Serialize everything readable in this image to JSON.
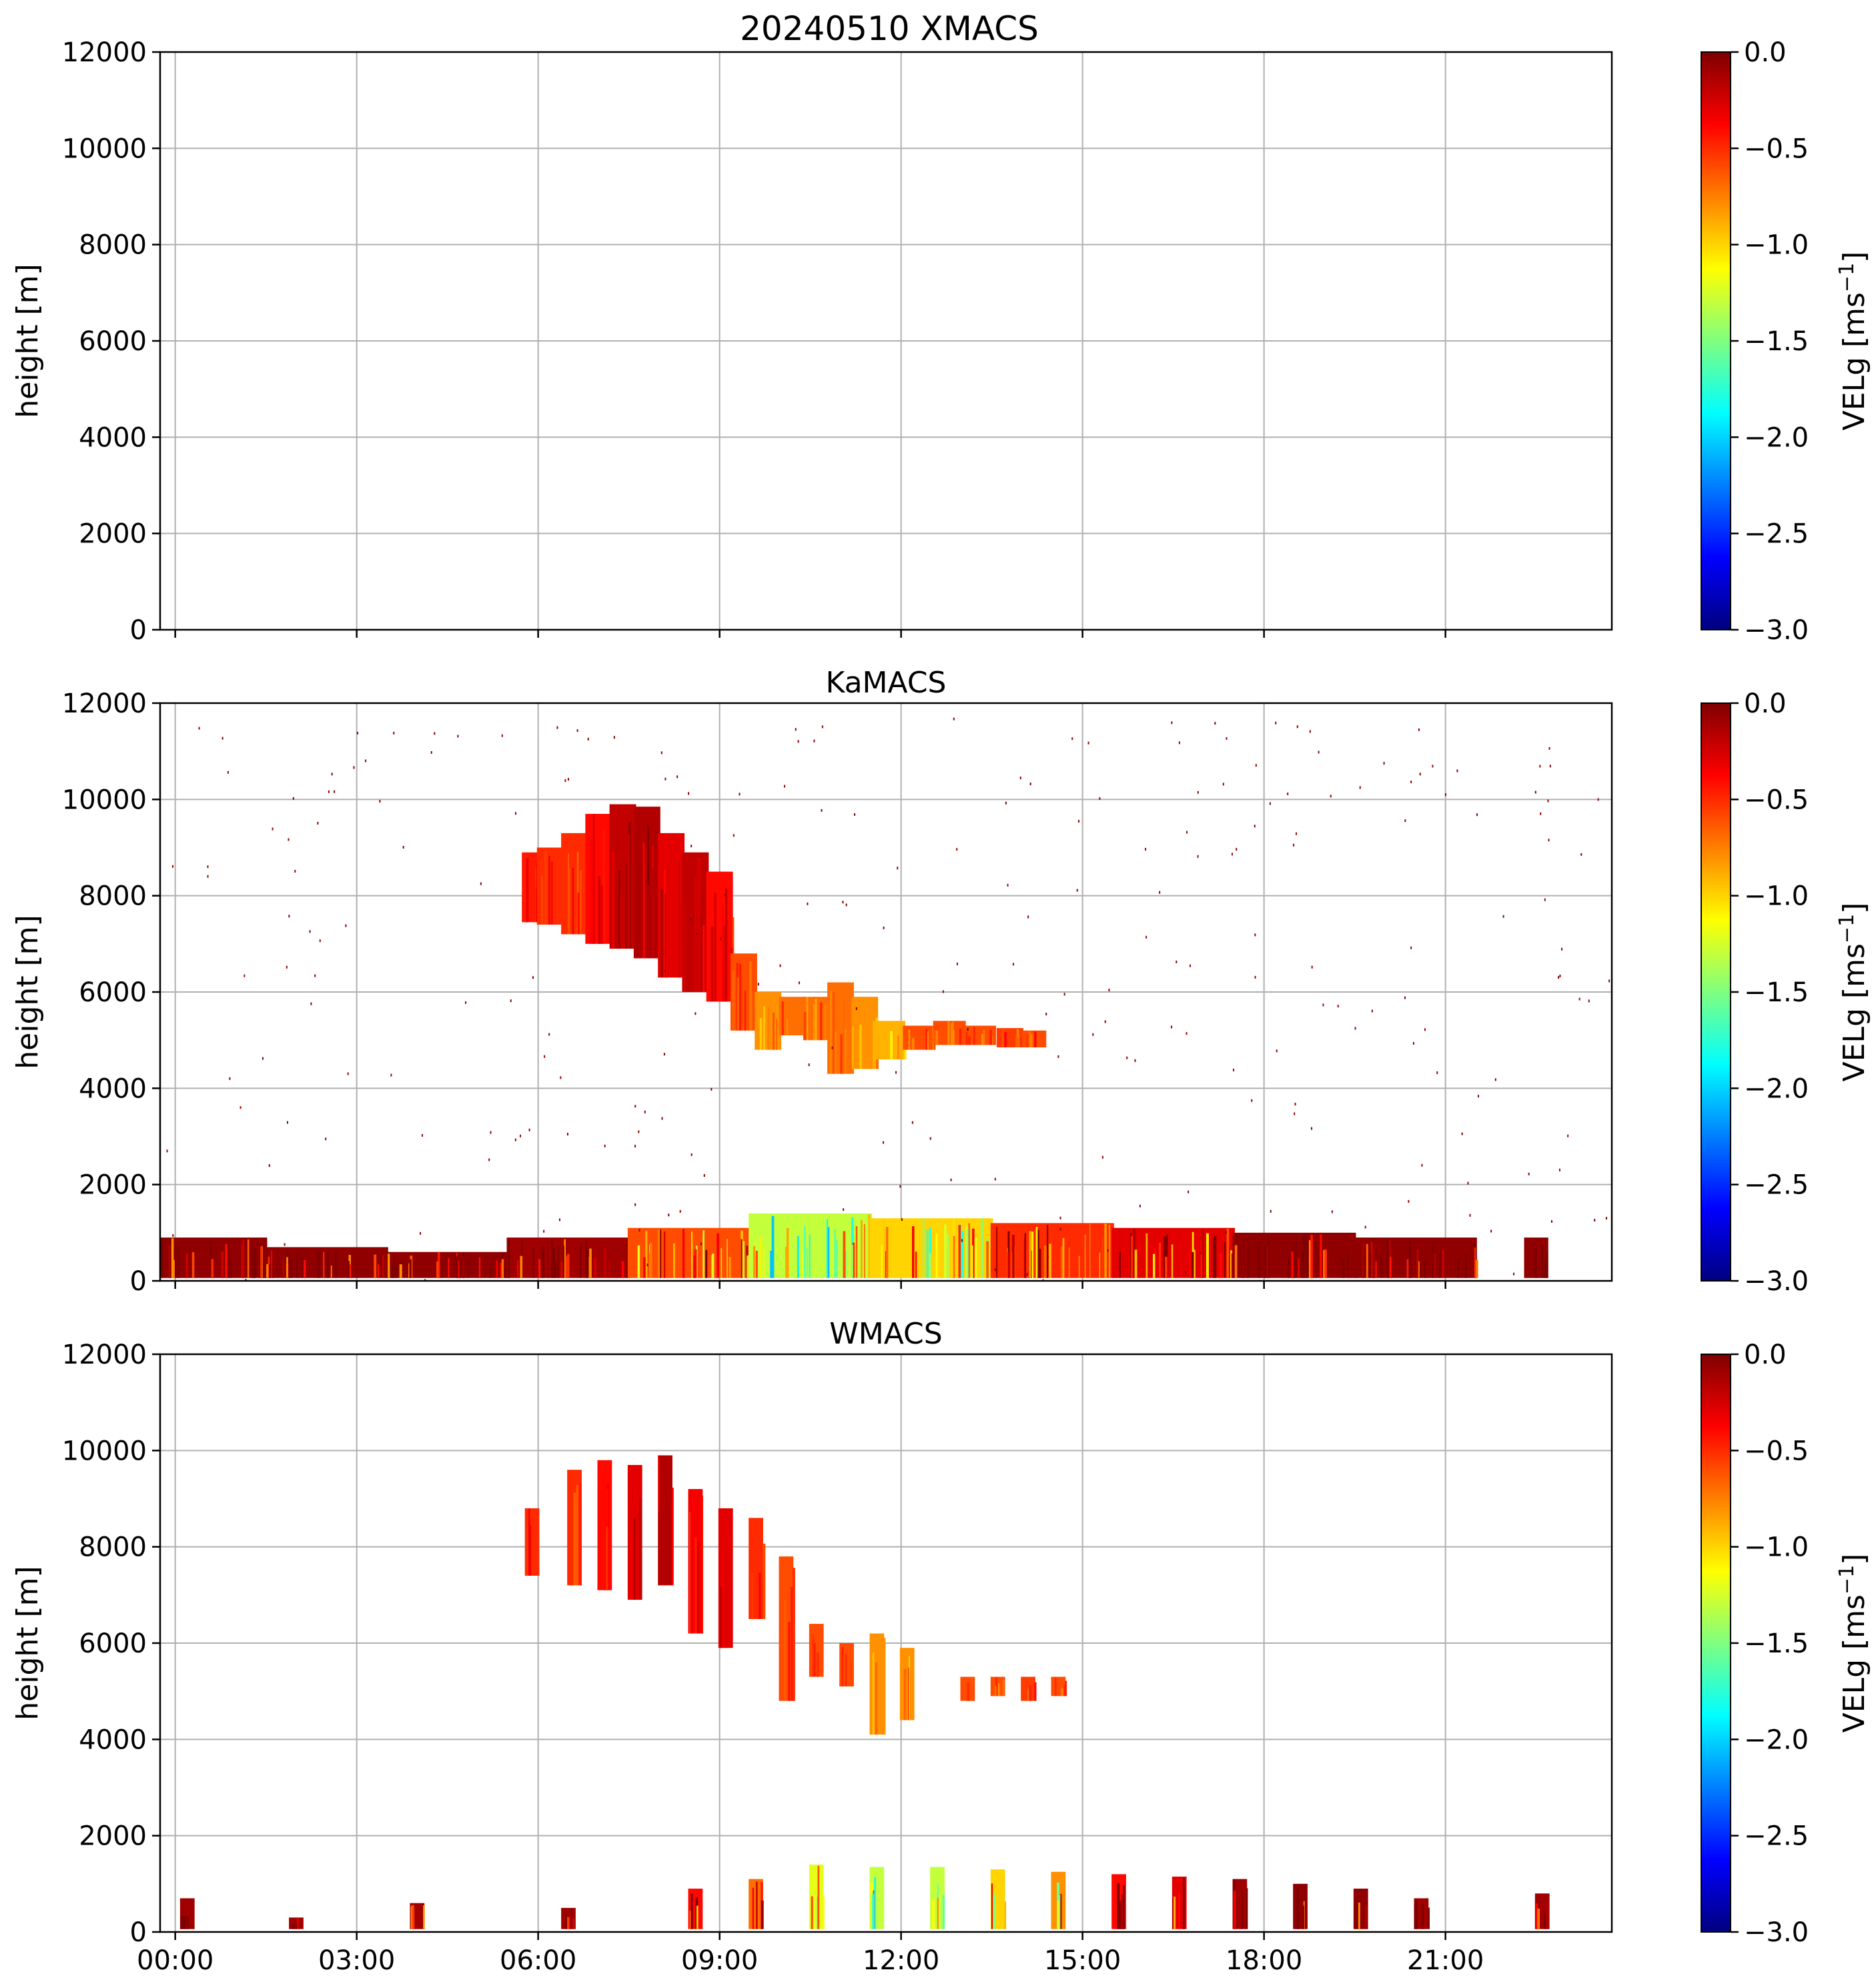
{
  "figure": {
    "suptitle": "20240510 XMACS"
  },
  "chart_data": [
    {
      "type": "heatmap",
      "title": "",
      "xlabel": "",
      "ylabel": "height [m]",
      "xlim": [
        -0.25,
        23.75
      ],
      "ylim": [
        0,
        12000
      ],
      "x_ticks": [
        0,
        3,
        6,
        9,
        12,
        15,
        18,
        21
      ],
      "x_tick_labels": [
        "00:00",
        "03:00",
        "06:00",
        "09:00",
        "12:00",
        "15:00",
        "18:00",
        "21:00"
      ],
      "show_x_tick_labels": false,
      "y_ticks": [
        0,
        2000,
        4000,
        6000,
        8000,
        10000,
        12000
      ],
      "y_tick_labels": [
        "0",
        "2000",
        "4000",
        "6000",
        "8000",
        "10000",
        "12000"
      ],
      "grid": true,
      "colorbar": {
        "label": "VELg [ms",
        "label_sup": "−1",
        "label_end": "]",
        "range": [
          -3.0,
          0.0
        ],
        "colormap": "jet",
        "colors": [
          "#00007f",
          "#0000ff",
          "#007fff",
          "#00ffff",
          "#7fff7f",
          "#ffff00",
          "#ff7f00",
          "#ff0000",
          "#7f0000"
        ],
        "ticks": [
          0.0,
          -0.5,
          -1.0,
          -1.5,
          -2.0,
          -2.5,
          -3.0
        ],
        "tick_labels": [
          "0.0",
          "−0.5",
          "−1.0",
          "−1.5",
          "−2.0",
          "−2.5",
          "−3.0"
        ]
      },
      "features": []
    },
    {
      "type": "heatmap",
      "title": "KaMACS",
      "xlabel": "",
      "ylabel": "height [m]",
      "xlim": [
        -0.25,
        23.75
      ],
      "ylim": [
        0,
        12000
      ],
      "x_ticks": [
        0,
        3,
        6,
        9,
        12,
        15,
        18,
        21
      ],
      "x_tick_labels": [
        "00:00",
        "03:00",
        "06:00",
        "09:00",
        "12:00",
        "15:00",
        "18:00",
        "21:00"
      ],
      "show_x_tick_labels": false,
      "y_ticks": [
        0,
        2000,
        4000,
        6000,
        8000,
        10000,
        12000
      ],
      "y_tick_labels": [
        "0",
        "2000",
        "4000",
        "6000",
        "8000",
        "10000",
        "12000"
      ],
      "grid": true,
      "colorbar": {
        "label": "VELg [ms",
        "label_sup": "−1",
        "label_end": "]",
        "range": [
          -3.0,
          0.0
        ],
        "colormap": "jet",
        "colors": [
          "#00007f",
          "#0000ff",
          "#007fff",
          "#00ffff",
          "#7fff7f",
          "#ffff00",
          "#ff7f00",
          "#ff0000",
          "#7f0000"
        ],
        "ticks": [
          0.0,
          -0.5,
          -1.0,
          -1.5,
          -2.0,
          -2.5,
          -3.0
        ],
        "tick_labels": [
          "0.0",
          "−0.5",
          "−1.0",
          "−1.5",
          "−2.0",
          "−2.5",
          "−3.0"
        ]
      },
      "features": [
        {
          "kind": "cloud",
          "description_values": "upper-level ice cloud, mostly −0.3 to −0.7 m/s",
          "columns": [
            {
              "t": 5.9,
              "bottom": 7450,
              "top": 8900,
              "velg": -0.45
            },
            {
              "t": 6.2,
              "bottom": 7400,
              "top": 9000,
              "velg": -0.5
            },
            {
              "t": 6.6,
              "bottom": 7200,
              "top": 9300,
              "velg": -0.5
            },
            {
              "t": 7.0,
              "bottom": 7000,
              "top": 9700,
              "velg": -0.4
            },
            {
              "t": 7.4,
              "bottom": 6900,
              "top": 9900,
              "velg": -0.2
            },
            {
              "t": 7.8,
              "bottom": 6700,
              "top": 9850,
              "velg": -0.15
            },
            {
              "t": 8.2,
              "bottom": 6300,
              "top": 9300,
              "velg": -0.3
            },
            {
              "t": 8.6,
              "bottom": 6000,
              "top": 8900,
              "velg": -0.2
            },
            {
              "t": 9.0,
              "bottom": 5800,
              "top": 8500,
              "velg": -0.4
            },
            {
              "t": 9.4,
              "bottom": 5200,
              "top": 6800,
              "velg": -0.6
            },
            {
              "t": 9.8,
              "bottom": 4800,
              "top": 6000,
              "velg": -0.8
            },
            {
              "t": 10.2,
              "bottom": 5100,
              "top": 5900,
              "velg": -0.7
            },
            {
              "t": 10.6,
              "bottom": 5000,
              "top": 5900,
              "velg": -0.7
            },
            {
              "t": 11.0,
              "bottom": 4300,
              "top": 6200,
              "velg": -0.7
            },
            {
              "t": 11.4,
              "bottom": 4400,
              "top": 5900,
              "velg": -0.8
            },
            {
              "t": 11.8,
              "bottom": 4600,
              "top": 5400,
              "velg": -0.9
            },
            {
              "t": 12.3,
              "bottom": 4800,
              "top": 5300,
              "velg": -0.6
            },
            {
              "t": 12.8,
              "bottom": 4900,
              "top": 5400,
              "velg": -0.6
            },
            {
              "t": 13.3,
              "bottom": 4900,
              "top": 5300,
              "velg": -0.6
            },
            {
              "t": 13.8,
              "bottom": 4850,
              "top": 5250,
              "velg": -0.55
            },
            {
              "t": 14.2,
              "bottom": 4850,
              "top": 5200,
              "velg": -0.6
            }
          ]
        },
        {
          "kind": "boundary-layer",
          "description_values": "low-level echoes below ~1400 m throughout the day",
          "columns": [
            {
              "t": 0.5,
              "top": 900,
              "velg": -0.05
            },
            {
              "t": 2.5,
              "top": 700,
              "velg": -0.05
            },
            {
              "t": 4.5,
              "top": 600,
              "velg": -0.05
            },
            {
              "t": 6.5,
              "top": 900,
              "velg": -0.1
            },
            {
              "t": 8.5,
              "top": 1100,
              "velg": -0.6
            },
            {
              "t": 10.5,
              "top": 1400,
              "velg": -1.3
            },
            {
              "t": 12.5,
              "top": 1300,
              "velg": -1.0
            },
            {
              "t": 14.5,
              "top": 1200,
              "velg": -0.5
            },
            {
              "t": 16.5,
              "top": 1100,
              "velg": -0.3
            },
            {
              "t": 18.5,
              "top": 1000,
              "velg": -0.05
            },
            {
              "t": 20.5,
              "top": 900,
              "velg": -0.05
            },
            {
              "t": 22.5,
              "top": 900,
              "velg": -0.05
            }
          ]
        }
      ]
    },
    {
      "type": "heatmap",
      "title": "WMACS",
      "xlabel": "",
      "ylabel": "height [m]",
      "xlim": [
        -0.25,
        23.75
      ],
      "ylim": [
        0,
        12000
      ],
      "x_ticks": [
        0,
        3,
        6,
        9,
        12,
        15,
        18,
        21
      ],
      "x_tick_labels": [
        "00:00",
        "03:00",
        "06:00",
        "09:00",
        "12:00",
        "15:00",
        "18:00",
        "21:00"
      ],
      "show_x_tick_labels": true,
      "y_ticks": [
        0,
        2000,
        4000,
        6000,
        8000,
        10000,
        12000
      ],
      "y_tick_labels": [
        "0",
        "2000",
        "4000",
        "6000",
        "8000",
        "10000",
        "12000"
      ],
      "grid": true,
      "colorbar": {
        "label": "VELg [ms",
        "label_sup": "−1",
        "label_end": "]",
        "range": [
          -3.0,
          0.0
        ],
        "colormap": "jet",
        "colors": [
          "#00007f",
          "#0000ff",
          "#007fff",
          "#00ffff",
          "#7fff7f",
          "#ffff00",
          "#ff7f00",
          "#ff0000",
          "#7f0000"
        ],
        "ticks": [
          0.0,
          -0.5,
          -1.0,
          -1.5,
          -2.0,
          -2.5,
          -3.0
        ],
        "tick_labels": [
          "0.0",
          "−0.5",
          "−1.0",
          "−1.5",
          "−2.0",
          "−2.5",
          "−3.0"
        ]
      },
      "features": [
        {
          "kind": "cloud-strips",
          "description_values": "intermittent strips of upper cloud",
          "columns": [
            {
              "t": 5.9,
              "bottom": 7400,
              "top": 8800,
              "velg": -0.5
            },
            {
              "t": 6.6,
              "bottom": 7200,
              "top": 9600,
              "velg": -0.5
            },
            {
              "t": 7.1,
              "bottom": 7100,
              "top": 9800,
              "velg": -0.4
            },
            {
              "t": 7.6,
              "bottom": 6900,
              "top": 9700,
              "velg": -0.3
            },
            {
              "t": 8.1,
              "bottom": 7200,
              "top": 9900,
              "velg": -0.15
            },
            {
              "t": 8.6,
              "bottom": 6200,
              "top": 9200,
              "velg": -0.35
            },
            {
              "t": 9.1,
              "bottom": 5900,
              "top": 8800,
              "velg": -0.3
            },
            {
              "t": 9.6,
              "bottom": 6500,
              "top": 8600,
              "velg": -0.5
            },
            {
              "t": 10.1,
              "bottom": 4800,
              "top": 7800,
              "velg": -0.6
            },
            {
              "t": 10.6,
              "bottom": 5300,
              "top": 6400,
              "velg": -0.6
            },
            {
              "t": 11.1,
              "bottom": 5100,
              "top": 6000,
              "velg": -0.6
            },
            {
              "t": 11.6,
              "bottom": 4100,
              "top": 6200,
              "velg": -0.8
            },
            {
              "t": 12.1,
              "bottom": 4400,
              "top": 5900,
              "velg": -0.8
            },
            {
              "t": 13.1,
              "bottom": 4800,
              "top": 5300,
              "velg": -0.6
            },
            {
              "t": 13.6,
              "bottom": 4900,
              "top": 5300,
              "velg": -0.6
            },
            {
              "t": 14.1,
              "bottom": 4800,
              "top": 5300,
              "velg": -0.55
            },
            {
              "t": 14.6,
              "bottom": 4900,
              "top": 5300,
              "velg": -0.6
            }
          ]
        },
        {
          "kind": "boundary-layer-strips",
          "description_values": "low-level echo strips below ~1400 m",
          "columns": [
            {
              "t": 0.2,
              "top": 700,
              "velg": -0.1
            },
            {
              "t": 2.0,
              "top": 300,
              "velg": -0.1
            },
            {
              "t": 4.0,
              "top": 600,
              "velg": -0.1
            },
            {
              "t": 6.5,
              "top": 500,
              "velg": -0.1
            },
            {
              "t": 8.6,
              "top": 900,
              "velg": -0.4
            },
            {
              "t": 9.6,
              "top": 1100,
              "velg": -0.7
            },
            {
              "t": 10.6,
              "top": 1400,
              "velg": -1.2
            },
            {
              "t": 11.6,
              "top": 1350,
              "velg": -1.3
            },
            {
              "t": 12.6,
              "top": 1350,
              "velg": -1.3
            },
            {
              "t": 13.6,
              "top": 1300,
              "velg": -1.0
            },
            {
              "t": 14.6,
              "top": 1250,
              "velg": -0.8
            },
            {
              "t": 15.6,
              "top": 1200,
              "velg": -0.4
            },
            {
              "t": 16.6,
              "top": 1150,
              "velg": -0.3
            },
            {
              "t": 17.6,
              "top": 1100,
              "velg": -0.1
            },
            {
              "t": 18.6,
              "top": 1000,
              "velg": -0.05
            },
            {
              "t": 19.6,
              "top": 900,
              "velg": -0.05
            },
            {
              "t": 20.6,
              "top": 700,
              "velg": -0.1
            },
            {
              "t": 22.6,
              "top": 800,
              "velg": -0.1
            }
          ]
        }
      ]
    }
  ]
}
